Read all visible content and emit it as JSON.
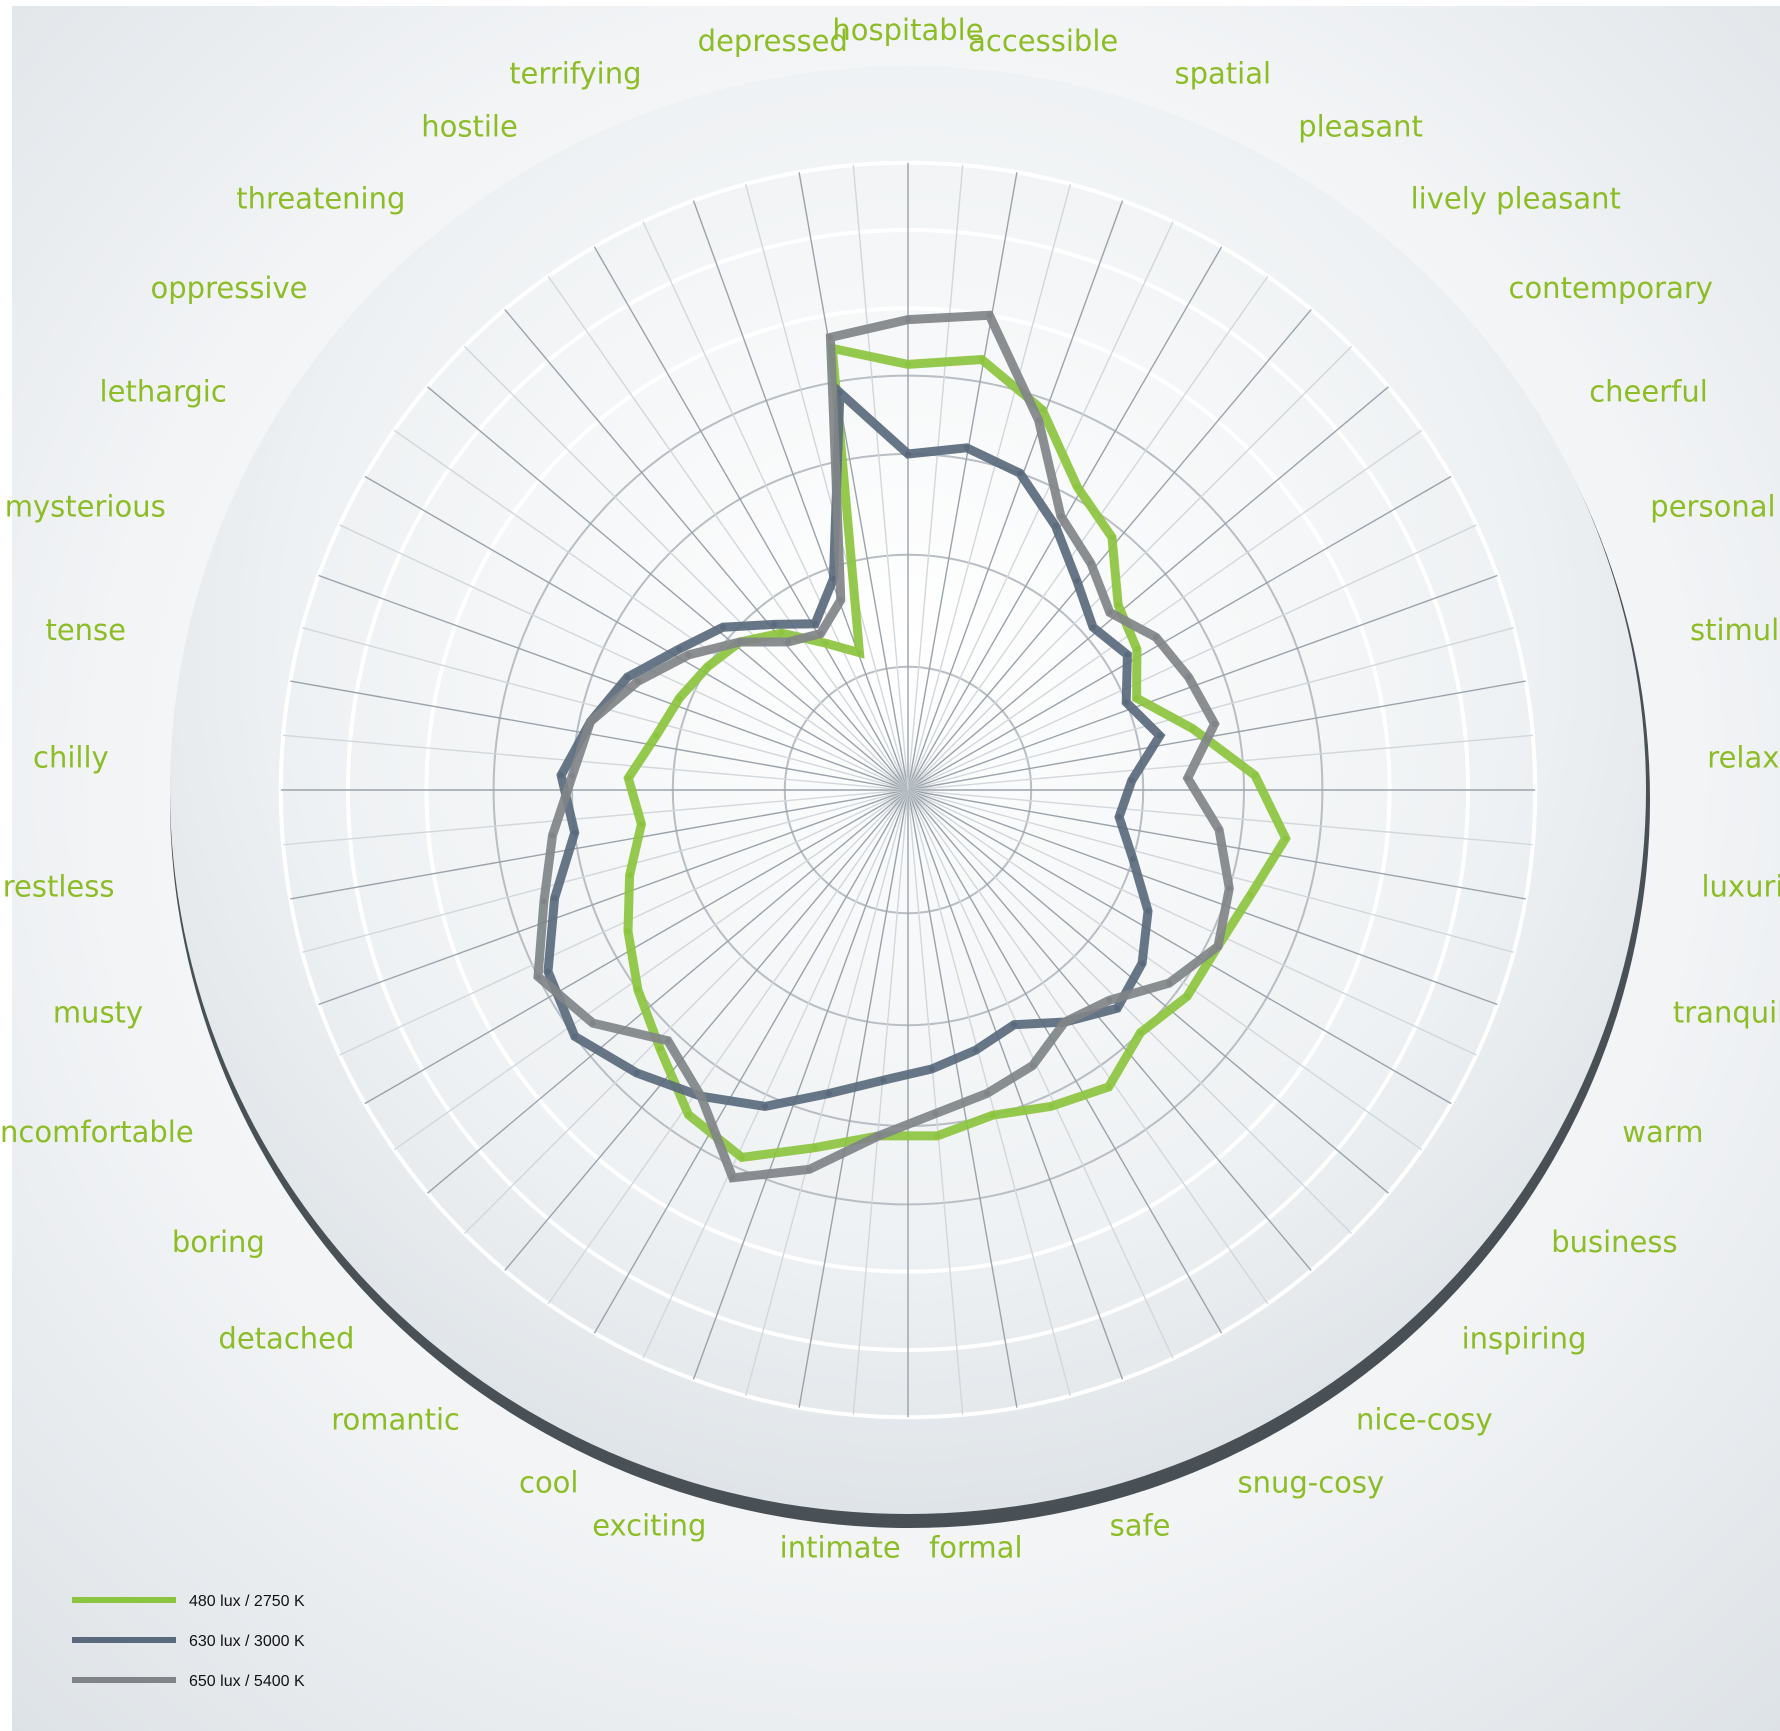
{
  "chart_data": {
    "type": "radar",
    "categories": [
      "hospitable",
      "accessible",
      "spatial",
      "pleasant",
      "lively pleasant",
      "contemporary",
      "cheerful",
      "personal",
      "stimulat",
      "relaxed",
      "luxuriou",
      "tranquil",
      "warm",
      "business",
      "inspiring",
      "nice-cosy",
      "snug-cosy",
      "safe",
      "formal",
      "intimate",
      "exciting",
      "cool",
      "romantic",
      "detached",
      "boring",
      "uncomfortable",
      "musty",
      "restless",
      "chilly",
      "tense",
      "mysterious",
      "lethargic",
      "oppressive",
      "threatening",
      "hostile",
      "terrifying",
      "depressed"
    ],
    "series": [
      {
        "name": "480 lux / 2750 K",
        "color": "#8cc43f",
        "values": [
          0.76,
          0.78,
          0.72,
          0.62,
          0.58,
          0.5,
          0.48,
          0.44,
          0.52,
          0.62,
          0.68,
          0.64,
          0.62,
          0.62,
          0.6,
          0.64,
          0.62,
          0.6,
          0.62,
          0.62,
          0.66,
          0.72,
          0.7,
          0.64,
          0.6,
          0.56,
          0.52,
          0.48,
          0.5,
          0.46,
          0.44,
          0.42,
          0.4,
          0.36,
          0.3,
          0.26,
          0.8
        ]
      },
      {
        "name": "630 lux / 3000 K",
        "color": "#5a6a7c",
        "values": [
          0.6,
          0.62,
          0.6,
          0.54,
          0.48,
          0.44,
          0.46,
          0.42,
          0.46,
          0.4,
          0.38,
          0.42,
          0.48,
          0.52,
          0.54,
          0.5,
          0.46,
          0.48,
          0.5,
          0.52,
          0.56,
          0.62,
          0.66,
          0.7,
          0.74,
          0.72,
          0.66,
          0.6,
          0.62,
          0.58,
          0.54,
          0.48,
          0.44,
          0.38,
          0.34,
          0.4,
          0.72
        ]
      },
      {
        "name": "650 lux / 5400 K",
        "color": "#808488",
        "values": [
          0.84,
          0.86,
          0.7,
          0.56,
          0.52,
          0.48,
          0.52,
          0.54,
          0.56,
          0.5,
          0.56,
          0.6,
          0.62,
          0.58,
          0.52,
          0.5,
          0.54,
          0.56,
          0.58,
          0.62,
          0.7,
          0.76,
          0.66,
          0.62,
          0.7,
          0.74,
          0.68,
          0.64,
          0.6,
          0.58,
          0.52,
          0.46,
          0.4,
          0.34,
          0.32,
          0.36,
          0.82
        ]
      }
    ],
    "rmax": 1,
    "grid": true,
    "legend_position": "bottom-left"
  }
}
